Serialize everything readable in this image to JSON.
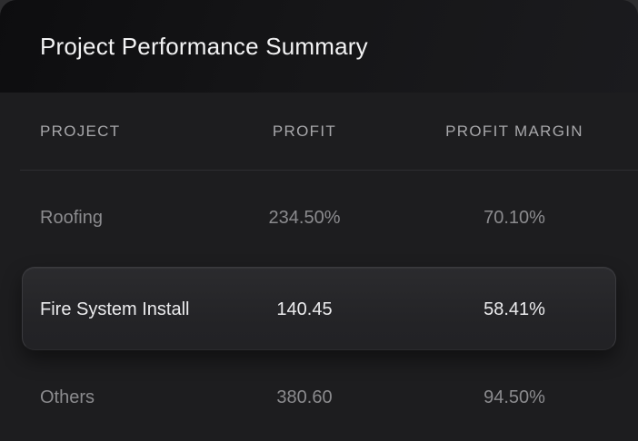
{
  "title": "Project Performance Summary",
  "table": {
    "columns": [
      {
        "label": "PROJECT"
      },
      {
        "label": "PROFIT"
      },
      {
        "label": "PROFIT MARGIN"
      }
    ],
    "rows": [
      {
        "project": "Roofing",
        "profit": "234.50%",
        "profit_margin": "70.10%",
        "highlighted": false
      },
      {
        "project": "Fire System Install",
        "profit": "140.45",
        "profit_margin": "58.41%",
        "highlighted": true
      },
      {
        "project": "Others",
        "profit": "380.60",
        "profit_margin": "94.50%",
        "highlighted": false
      }
    ]
  },
  "colors": {
    "widget_background": "#1d1d1f",
    "titlebar_gradient_start": "#0d0d0f",
    "titlebar_gradient_end": "#1b1b1e",
    "title_text": "#f3f3f4",
    "header_text": "#a7a7aa",
    "row_text": "#8b8b8e",
    "highlight_text": "#ebebed",
    "highlight_card": "#232326",
    "highlight_border": "#3a3a3e",
    "divider": "#2e2e31"
  }
}
